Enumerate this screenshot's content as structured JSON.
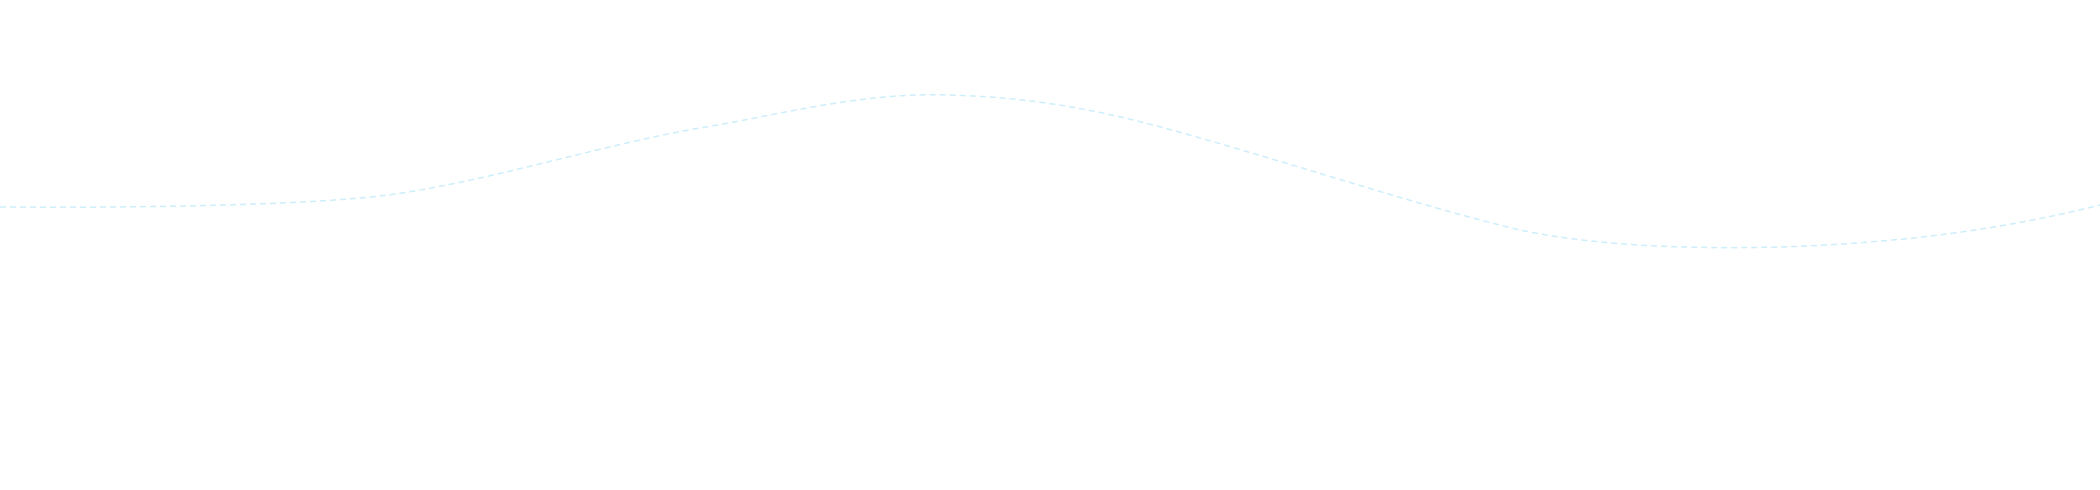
{
  "background_color": "#ffffff",
  "wave_color": "#cdeefb"
}
